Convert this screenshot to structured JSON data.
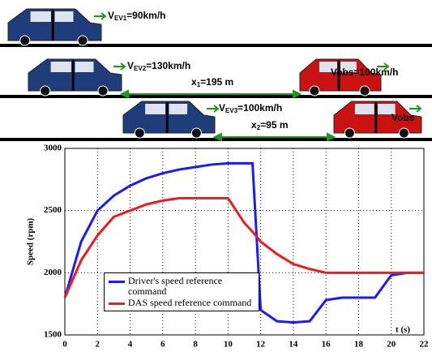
{
  "diagram": {
    "car1": {
      "v": "V",
      "sub": "EV1",
      "value": "=90km/h"
    },
    "car2": {
      "v": "V",
      "sub": "EV2",
      "value": "=130km/h"
    },
    "car3": {
      "v": "V",
      "sub": "EV3",
      "value": "=100km/h"
    },
    "obs1": "Vobs=100km/h",
    "obs2": "Vobs",
    "dist1": {
      "x": "x",
      "sub": "1",
      "value": "=195 m"
    },
    "dist2": {
      "x": "x",
      "sub": "2",
      "value": "=95 m"
    }
  },
  "chart_data": {
    "type": "line",
    "xlabel": "t (s)",
    "ylabel": "Speed (rpm)",
    "x": [
      0,
      1,
      2,
      3,
      4,
      5,
      6,
      7,
      8,
      9,
      10,
      11,
      11.5,
      12,
      13,
      14,
      15,
      16,
      17,
      18,
      19,
      20,
      21,
      22
    ],
    "series": [
      {
        "name": "Driver's speed reference command",
        "color": "#1a1aff",
        "values": [
          1800,
          2250,
          2500,
          2620,
          2700,
          2760,
          2800,
          2830,
          2850,
          2870,
          2880,
          2880,
          2880,
          1700,
          1610,
          1600,
          1610,
          1780,
          1800,
          1800,
          1800,
          1980,
          2000,
          2000
        ]
      },
      {
        "name": "DAS speed reference command",
        "color": "#ee1c1c",
        "values": [
          1800,
          2100,
          2300,
          2450,
          2500,
          2550,
          2580,
          2600,
          2600,
          2600,
          2600,
          2400,
          2330,
          2250,
          2150,
          2070,
          2030,
          2000,
          2000,
          2000,
          2000,
          2000,
          2000,
          2000
        ]
      }
    ],
    "xlim": [
      0,
      22
    ],
    "xticks": [
      0,
      2,
      4,
      6,
      8,
      10,
      12,
      14,
      16,
      18,
      20,
      22
    ],
    "ylim": [
      1500,
      3000
    ],
    "yticks": [
      1500,
      2000,
      2500,
      3000
    ],
    "grid": true
  }
}
